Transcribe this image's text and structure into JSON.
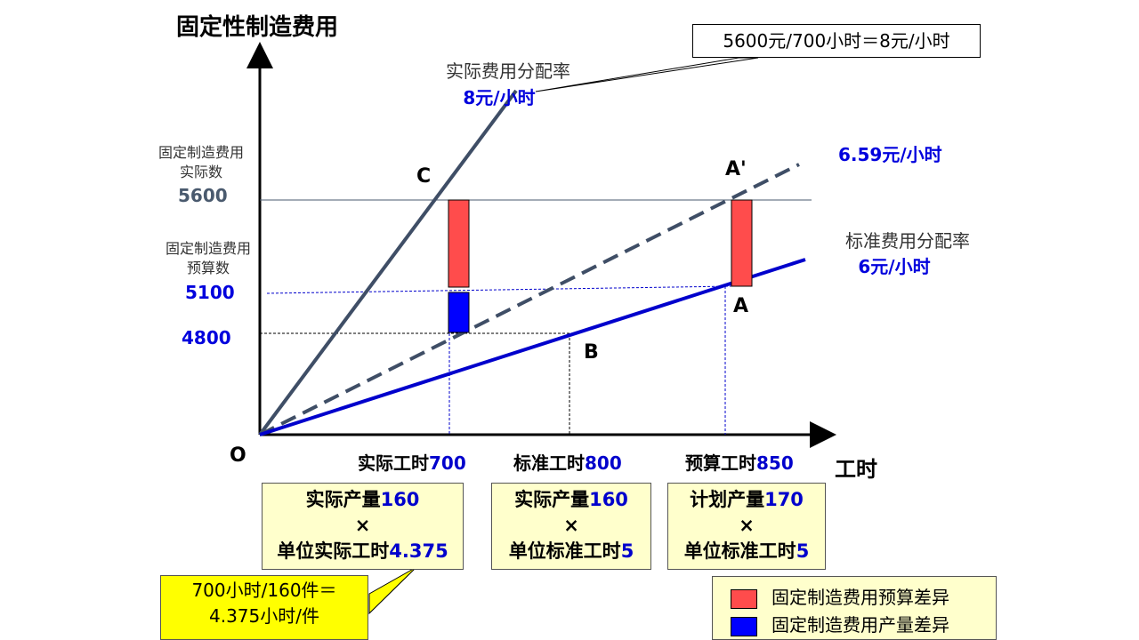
{
  "title": "固定性制造费用",
  "x_axis_label": "工时",
  "origin_label": "O",
  "points": {
    "C": "C",
    "A_prime": "A'",
    "A": "A",
    "B": "B"
  },
  "y_labels": {
    "actual_name": [
      "固定制造费用",
      "实际数"
    ],
    "actual_value": "5600",
    "budget_name": [
      "固定制造费用",
      "预算数"
    ],
    "budget_value": "5100",
    "standard_value": "4800"
  },
  "x_ticks": [
    {
      "label": "实际工时",
      "value": "700"
    },
    {
      "label": "标准工时",
      "value": "800"
    },
    {
      "label": "预算工时",
      "value": "850"
    }
  ],
  "lines": {
    "actual_rate": {
      "name": "实际费用分配率",
      "rate": "8元/小时"
    },
    "dashed_rate": {
      "rate": "6.59元/小时"
    },
    "standard_rate": {
      "name": "标准费用分配率",
      "rate": "6元/小时"
    }
  },
  "note_box": "5600元/700小时＝8元/小时",
  "boxes": [
    {
      "line1_label": "实际产量",
      "line1_value": "160",
      "line2": "×",
      "line3_label": "单位实际工时",
      "line3_value": "4.375"
    },
    {
      "line1_label": "实际产量",
      "line1_value": "160",
      "line2": "×",
      "line3_label": "单位标准工时",
      "line3_value": "5"
    },
    {
      "line1_label": "计划产量",
      "line1_value": "170",
      "line2": "×",
      "line3_label": "单位标准工时",
      "line3_value": "5"
    }
  ],
  "callout": [
    "700小时/160件＝",
    "4.375小时/件"
  ],
  "legend": [
    {
      "label": "固定制造费用预算差异",
      "color": "#ff4c4c"
    },
    {
      "label": "固定制造费用产量差异",
      "color": "#0000ff"
    }
  ],
  "colors": {
    "actual_line": "#3f4e66",
    "standard_line": "#0000cc",
    "budget_variance": "#ff4c4c",
    "volume_variance": "#0000ff"
  }
}
